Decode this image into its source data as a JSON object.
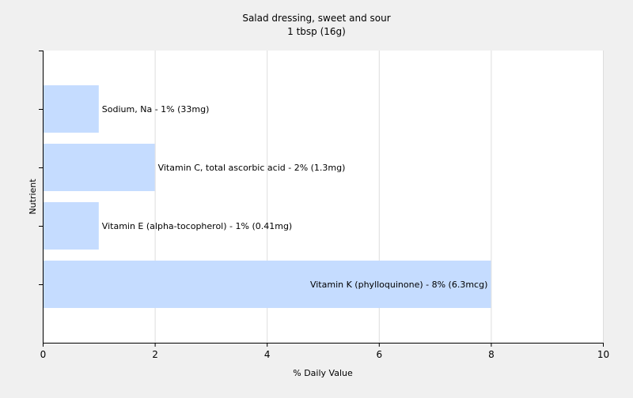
{
  "chart_data": {
    "type": "bar",
    "orientation": "horizontal",
    "title": "Salad dressing, sweet and sour",
    "subtitle": "1 tbsp (16g)",
    "xlabel": "% Daily Value",
    "ylabel": "Nutrient",
    "xlim": [
      0,
      10
    ],
    "xticks": [
      0,
      2,
      4,
      6,
      8,
      10
    ],
    "grid": true,
    "categories": [
      "Sodium, Na",
      "Vitamin C, total ascorbic acid",
      "Vitamin E (alpha-tocopherol)",
      "Vitamin K (phylloquinone)"
    ],
    "values": [
      1,
      2,
      1,
      8
    ],
    "bar_labels": [
      "Sodium, Na - 1% (33mg)",
      "Vitamin C, total ascorbic acid - 2% (1.3mg)",
      "Vitamin E (alpha-tocopherol) - 1% (0.41mg)",
      "Vitamin K (phylloquinone) - 8% (6.3mcg)"
    ],
    "colors": {
      "bar": "#c5dcff",
      "grid": "#dddddd",
      "plot_bg": "#ffffff",
      "page_bg": "#f0f0f0",
      "axis": "#000000"
    }
  }
}
